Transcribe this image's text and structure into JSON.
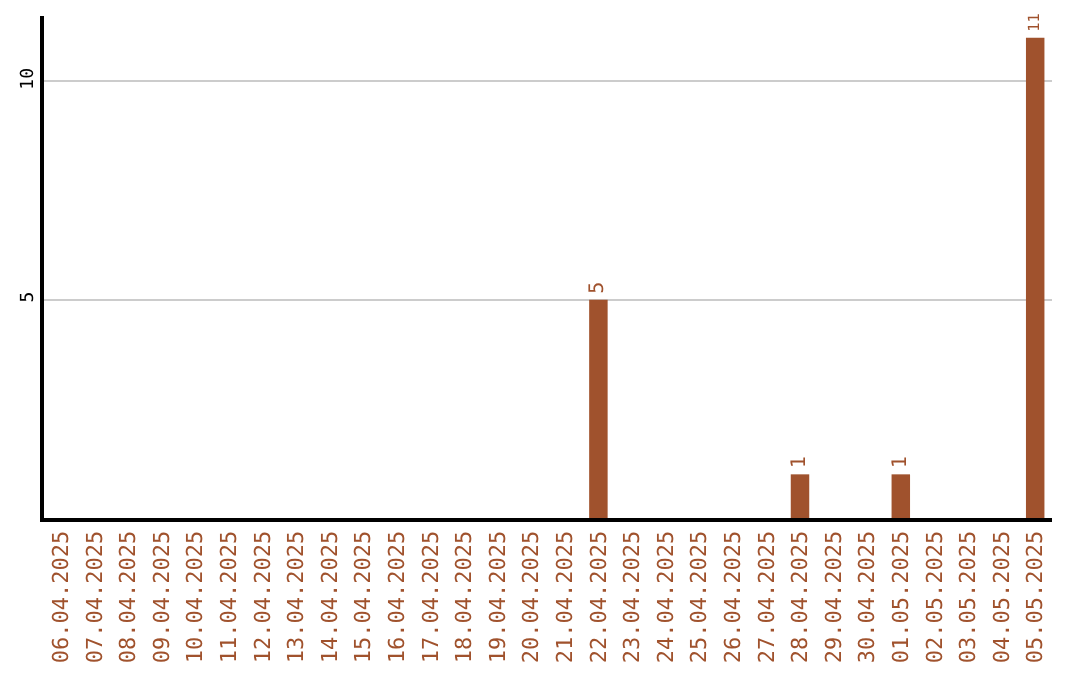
{
  "chart_data": {
    "type": "bar",
    "categories": [
      "06.04.2025",
      "07.04.2025",
      "08.04.2025",
      "09.04.2025",
      "10.04.2025",
      "11.04.2025",
      "12.04.2025",
      "13.04.2025",
      "14.04.2025",
      "15.04.2025",
      "16.04.2025",
      "17.04.2025",
      "18.04.2025",
      "19.04.2025",
      "20.04.2025",
      "21.04.2025",
      "22.04.2025",
      "23.04.2025",
      "24.04.2025",
      "25.04.2025",
      "26.04.2025",
      "27.04.2025",
      "28.04.2025",
      "29.04.2025",
      "30.04.2025",
      "01.05.2025",
      "02.05.2025",
      "03.05.2025",
      "04.05.2025",
      "05.05.2025"
    ],
    "values": [
      0,
      0,
      0,
      0,
      0,
      0,
      0,
      0,
      0,
      0,
      0,
      0,
      0,
      0,
      0,
      0,
      5,
      0,
      0,
      0,
      0,
      0,
      1,
      0,
      0,
      1,
      0,
      0,
      0,
      11
    ],
    "value_labels": [
      null,
      null,
      null,
      null,
      null,
      null,
      null,
      null,
      null,
      null,
      null,
      null,
      null,
      null,
      null,
      null,
      "5",
      null,
      null,
      null,
      null,
      null,
      "1",
      null,
      null,
      "1",
      null,
      null,
      null,
      "11"
    ],
    "color": "#a0522d",
    "ylim": [
      0,
      11.5
    ],
    "yticks": [
      5,
      10
    ],
    "grid": "y",
    "legend": false
  }
}
